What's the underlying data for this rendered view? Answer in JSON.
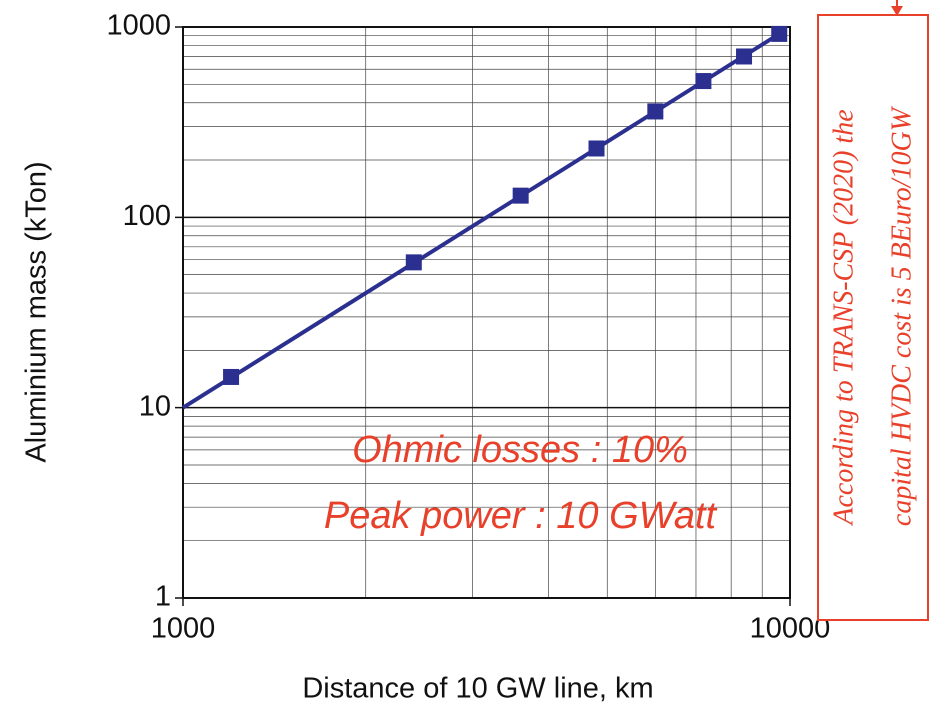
{
  "chart_data": {
    "type": "line",
    "xlabel": "Distance of 10 GW line, km",
    "ylabel": "Aluminium mass (kTon)",
    "xscale": "log",
    "yscale": "log",
    "xlim": [
      1000,
      10000
    ],
    "ylim": [
      1,
      1000
    ],
    "xticks": [
      1000,
      10000
    ],
    "yticks": [
      1,
      10,
      100,
      1000
    ],
    "xminorticks": [
      2000,
      3000,
      4000,
      5000,
      6000,
      7000,
      8000,
      9000
    ],
    "yminorticks": [
      2,
      3,
      4,
      5,
      6,
      7,
      8,
      9,
      20,
      30,
      40,
      50,
      60,
      70,
      80,
      90,
      200,
      300,
      400,
      500,
      600,
      700,
      800,
      900
    ],
    "grid": true,
    "series": [
      {
        "mode": "line",
        "color": "#2b2f8f",
        "x": [
          1000,
          9600
        ],
        "values": [
          10,
          920
        ]
      },
      {
        "mode": "markers",
        "color": "#2b2f8f",
        "x": [
          1200,
          2400,
          3600,
          4800,
          6000,
          7200,
          8400,
          9600
        ],
        "values": [
          14.5,
          58,
          130,
          230,
          360,
          520,
          700,
          920
        ]
      }
    ],
    "annotations": [
      "Ohmic losses : 10%",
      "Peak power : 10 GWatt"
    ],
    "note_lines": [
      "According to TRANS-CSP (2020) the",
      "capital HVDC cost is 5 BEuro/10GW"
    ],
    "note_color": "#e8402a"
  }
}
